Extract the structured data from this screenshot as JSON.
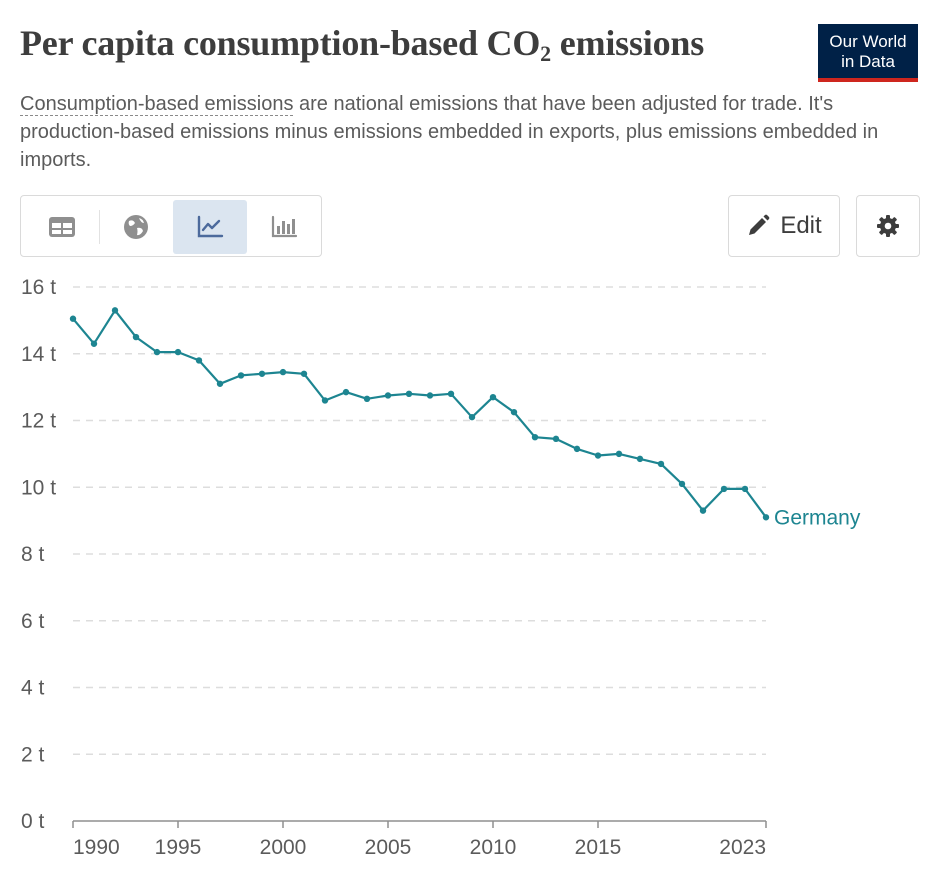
{
  "header": {
    "title_main": "Per capita consumption-based CO",
    "title_sub": "2",
    "title_end": " emissions",
    "logo_line1": "Our World",
    "logo_line2": "in Data",
    "subtitle_term": "Consumption-based emissions",
    "subtitle_rest": " are national emissions that have been adjusted for trade. It's production-based emissions minus emissions embedded in exports, plus emissions embedded in imports."
  },
  "toolbar": {
    "tabs": [
      {
        "icon": "table-icon",
        "active": false
      },
      {
        "icon": "globe-icon",
        "active": false
      },
      {
        "icon": "line-chart-icon",
        "active": true
      },
      {
        "icon": "bar-chart-icon",
        "active": false
      }
    ],
    "edit_label": "Edit",
    "edit_icon": "pencil-icon",
    "settings_icon": "gear-icon"
  },
  "colors": {
    "series": "#1d8591",
    "grid": "#dddddd",
    "logo_bg": "#002147",
    "logo_accent": "#ce261e",
    "tab_active": "#dbe5f0"
  },
  "chart_data": {
    "type": "line",
    "title": "Per capita consumption-based CO2 emissions",
    "ylim": [
      0,
      16
    ],
    "xlim": [
      1990,
      2023
    ],
    "y_ticks": [
      0,
      2,
      4,
      6,
      8,
      10,
      12,
      14,
      16
    ],
    "y_tick_labels": [
      "0 t",
      "2 t",
      "4 t",
      "6 t",
      "8 t",
      "10 t",
      "12 t",
      "14 t",
      "16 t"
    ],
    "x_ticks": [
      1990,
      1995,
      2000,
      2005,
      2010,
      2015,
      2023
    ],
    "x_tick_labels": [
      "1990",
      "1995",
      "2000",
      "2005",
      "2010",
      "2015",
      "2023"
    ],
    "grid": "horizontal dashed",
    "series": [
      {
        "name": "Germany",
        "x": [
          1990,
          1991,
          1992,
          1993,
          1994,
          1995,
          1996,
          1997,
          1998,
          1999,
          2000,
          2001,
          2002,
          2003,
          2004,
          2005,
          2006,
          2007,
          2008,
          2009,
          2010,
          2011,
          2012,
          2013,
          2014,
          2015,
          2016,
          2017,
          2018,
          2019,
          2020,
          2021,
          2022,
          2023
        ],
        "values": [
          15.05,
          14.3,
          15.3,
          14.5,
          14.05,
          14.05,
          13.8,
          13.1,
          13.35,
          13.4,
          13.45,
          13.4,
          12.6,
          12.85,
          12.65,
          12.75,
          12.8,
          12.75,
          12.8,
          12.1,
          12.7,
          12.25,
          11.5,
          11.45,
          11.15,
          10.95,
          11.0,
          10.85,
          10.7,
          10.1,
          9.3,
          9.95,
          9.95,
          9.1
        ]
      }
    ]
  }
}
